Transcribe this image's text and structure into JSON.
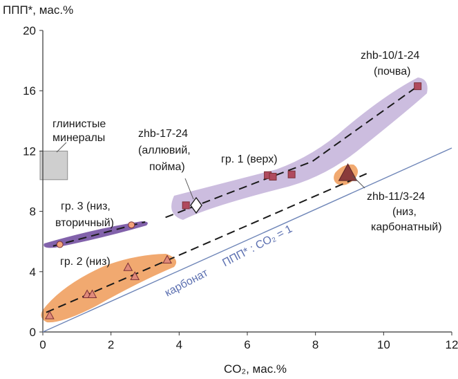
{
  "chart_data": {
    "type": "scatter",
    "xlabel": "CO₂, мас.%",
    "ylabel": "ППП*, мас.%",
    "xlim": [
      0,
      12
    ],
    "ylim": [
      0,
      20
    ],
    "xticks": [
      0,
      2,
      4,
      6,
      8,
      10,
      12
    ],
    "yticks": [
      0,
      4,
      8,
      12,
      16,
      20
    ],
    "grid": false,
    "colors": {
      "group1_fill": "#c7b6dc",
      "group2_fill": "#f0a061",
      "group3_fill": "#7b5aa6",
      "group1_marker": "#b04a5e",
      "group2_marker": "#e08a7a",
      "group3_marker": "#f2a37b",
      "marker_stroke": "#7a2f35",
      "reference_line": "#6f86b8",
      "carbonate_text": "#5b6fb0",
      "clay_box": "#cfcfcf"
    },
    "series": [
      {
        "name": "гр. 1 (верх)",
        "marker": "square",
        "points": [
          [
            4.2,
            8.4
          ],
          [
            6.6,
            10.4
          ],
          [
            6.75,
            10.3
          ],
          [
            7.3,
            10.45
          ],
          [
            11.0,
            16.3
          ]
        ]
      },
      {
        "name": "гр. 2 (низ)",
        "marker": "triangle",
        "points": [
          [
            0.2,
            1.1
          ],
          [
            1.3,
            2.5
          ],
          [
            1.45,
            2.5
          ],
          [
            2.5,
            4.3
          ],
          [
            2.7,
            3.7
          ],
          [
            3.65,
            4.8
          ]
        ]
      },
      {
        "name": "гр. 3 (низ, вторичный)",
        "marker": "circle",
        "points": [
          [
            0.5,
            5.8
          ],
          [
            2.6,
            7.1
          ]
        ]
      },
      {
        "name": "zhb-17-24",
        "marker": "diamond",
        "points": [
          [
            4.5,
            8.4
          ]
        ]
      },
      {
        "name": "zhb-11/3-24",
        "marker": "big-triangle",
        "points": [
          [
            8.95,
            10.5
          ]
        ]
      }
    ],
    "trend_lines": [
      {
        "name": "гр. 1 trend",
        "points": [
          [
            3.6,
            7.6
          ],
          [
            6.6,
            10.2
          ],
          [
            7.9,
            11.3
          ],
          [
            11.0,
            16.3
          ]
        ]
      },
      {
        "name": "гр. 2 trend",
        "points": [
          [
            0.1,
            1.3
          ],
          [
            3.7,
            4.8
          ],
          [
            9.5,
            10.5
          ]
        ]
      },
      {
        "name": "гр. 3 trend",
        "points": [
          [
            0.3,
            5.7
          ],
          [
            3.0,
            7.3
          ]
        ]
      }
    ],
    "reference_line": {
      "label": "ППП* : CO₂ = 1",
      "points": [
        [
          0,
          0
        ],
        [
          12,
          12.2
        ]
      ]
    },
    "clay_range": {
      "x": [
        0,
        0.4
      ],
      "y": [
        10.1,
        12.0
      ]
    },
    "annotations": {
      "clay": [
        "глинистые",
        "минералы"
      ],
      "zhb17": [
        "zhb-17-24",
        "(аллювий,",
        "пойма)"
      ],
      "group1": [
        "гр. 1 (верх)"
      ],
      "zhb10": [
        "zhb-10/1-24",
        "(почва)"
      ],
      "group3": [
        "гр. 3 (низ,",
        "вторичный)"
      ],
      "zhb11": [
        "zhb-11/3-24",
        "(низ,",
        "карбонатный)"
      ],
      "group2": [
        "гр. 2 (низ)"
      ],
      "carbonate": "карбонат"
    }
  }
}
